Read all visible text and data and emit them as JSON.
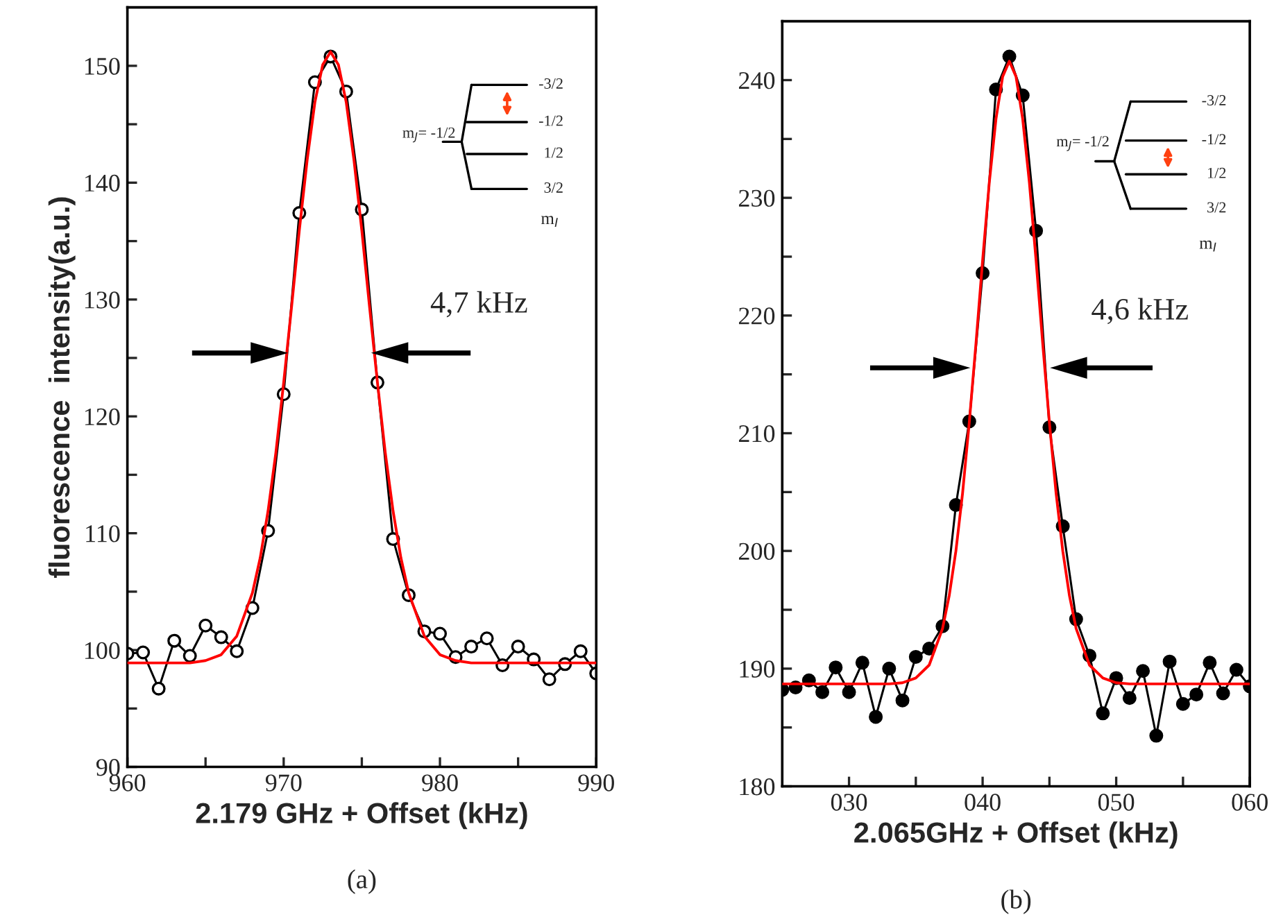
{
  "chart_data": [
    {
      "type": "line",
      "title": "(a)",
      "xlabel": "2.179 GHz + Offset (kHz)",
      "ylabel": "fluorescence  intensity(a.u.)",
      "xlim": [
        960,
        990
      ],
      "xticks": [
        960,
        {
          "value": 965,
          "label": null
        },
        970,
        {
          "value": 975,
          "label": null
        },
        980,
        {
          "value": 985,
          "label": null
        },
        990
      ],
      "ylim": [
        90,
        155
      ],
      "yticks": [
        90,
        {
          "value": 95,
          "label": null
        },
        100,
        {
          "value": 105,
          "label": null
        },
        110,
        {
          "value": 115,
          "label": null
        },
        120,
        {
          "value": 125,
          "label": null
        },
        130,
        {
          "value": 135,
          "label": null
        },
        140,
        {
          "value": 145,
          "label": null
        },
        150
      ],
      "grid": false,
      "legend": false,
      "annotations": [
        "4,7 kHz",
        "m$_{J}$= -1/2",
        "-3/2",
        "-1/2",
        "1/2",
        "3/2",
        "m$_{I}$"
      ],
      "series": [
        {
          "color": "#000000",
          "marker": "circle",
          "x": [
            960,
            961,
            962,
            963,
            964,
            965,
            966,
            967,
            968,
            969,
            970,
            971,
            972,
            973,
            974,
            975,
            976,
            977,
            978,
            979,
            980,
            981,
            982,
            983,
            984,
            985,
            986,
            987,
            988,
            989,
            990
          ],
          "values": [
            99.7,
            99.8,
            96.7,
            100.8,
            99.5,
            102.1,
            101.1,
            99.9,
            103.6,
            110.2,
            121.9,
            137.4,
            148.6,
            150.8,
            147.8,
            137.7,
            122.9,
            109.5,
            104.7,
            101.6,
            101.4,
            99.4,
            100.3,
            101.0,
            98.7,
            100.3,
            99.2,
            97.5,
            98.8,
            99.9,
            98.0
          ]
        },
        {
          "color": "#ff0000",
          "marker": "none",
          "x": [
            960,
            962,
            964,
            965,
            966,
            967,
            968,
            968.5,
            969,
            969.5,
            970,
            970.5,
            971,
            971.5,
            972,
            972.5,
            973,
            973.5,
            974,
            974.5,
            975,
            975.5,
            976,
            976.5,
            977,
            977.5,
            978,
            979,
            980,
            981,
            982,
            984,
            986,
            988,
            990
          ],
          "values": [
            98.9,
            98.9,
            98.9,
            99.1,
            99.6,
            101.2,
            104.9,
            107.9,
            111.9,
            116.9,
            122.9,
            129.3,
            135.9,
            141.9,
            146.9,
            150.1,
            151.2,
            150.1,
            146.9,
            141.9,
            135.9,
            129.3,
            122.9,
            116.9,
            111.9,
            107.9,
            104.9,
            101.2,
            99.6,
            99.1,
            98.9,
            98.9,
            98.9,
            98.9,
            98.9
          ]
        }
      ]
    },
    {
      "type": "line",
      "title": "(b)",
      "xlabel": "2.065GHz + Offset (kHz)",
      "xlim": [
        25,
        60
      ],
      "xticks": [
        {
          "value": 30,
          "label": "030"
        },
        {
          "value": 35,
          "label": null
        },
        {
          "value": 40,
          "label": "040"
        },
        {
          "value": 45,
          "label": null
        },
        {
          "value": 50,
          "label": "050"
        },
        {
          "value": 55,
          "label": null
        },
        {
          "value": 60,
          "label": "060"
        }
      ],
      "ylim": [
        180,
        245
      ],
      "yticks": [
        180,
        {
          "value": 185,
          "label": null
        },
        190,
        {
          "value": 195,
          "label": null
        },
        200,
        {
          "value": 205,
          "label": null
        },
        210,
        {
          "value": 215,
          "label": null
        },
        220,
        {
          "value": 225,
          "label": null
        },
        230,
        {
          "value": 235,
          "label": null
        },
        240
      ],
      "grid": false,
      "legend": false,
      "annotations": [
        "4,6 kHz",
        "m$_{J}$= -1/2",
        "-3/2",
        "-1/2",
        "1/2",
        "3/2",
        "m$_{I}$"
      ],
      "series": [
        {
          "color": "#000000",
          "marker": "circle",
          "x": [
            25,
            26,
            27,
            28,
            29,
            30,
            31,
            32,
            33,
            34,
            35,
            36,
            37,
            38,
            39,
            40,
            41,
            42,
            43,
            44,
            45,
            46,
            47,
            48,
            49,
            50,
            51,
            52,
            53,
            54,
            55,
            56,
            57,
            58,
            59,
            60
          ],
          "values": [
            188.2,
            188.4,
            189.0,
            188.0,
            190.1,
            188.0,
            190.5,
            185.9,
            190.0,
            187.3,
            191.0,
            191.7,
            193.6,
            203.9,
            211.0,
            223.6,
            239.2,
            242.0,
            238.7,
            227.2,
            210.5,
            202.1,
            194.2,
            191.1,
            186.2,
            189.2,
            187.5,
            189.8,
            184.3,
            190.6,
            187.0,
            187.8,
            190.5,
            187.9,
            189.9,
            188.5
          ]
        },
        {
          "color": "#ff0000",
          "marker": "none",
          "x": [
            25,
            28,
            31,
            33,
            34,
            35,
            36,
            37,
            37.5,
            38,
            38.5,
            39,
            39.5,
            40,
            40.5,
            41,
            41.5,
            42,
            42.5,
            43,
            43.5,
            44,
            44.5,
            45,
            45.5,
            46,
            46.5,
            47,
            48,
            49,
            50,
            51,
            53,
            56,
            60
          ],
          "values": [
            188.7,
            188.7,
            188.7,
            188.7,
            188.8,
            189.2,
            190.3,
            193.4,
            196.2,
            200.0,
            204.9,
            210.9,
            217.6,
            224.7,
            231.3,
            236.7,
            240.3,
            241.6,
            240.3,
            236.7,
            231.3,
            224.7,
            217.6,
            210.9,
            204.9,
            200.0,
            196.2,
            193.4,
            190.3,
            189.2,
            188.8,
            188.7,
            188.7,
            188.7,
            188.7
          ]
        }
      ]
    }
  ]
}
